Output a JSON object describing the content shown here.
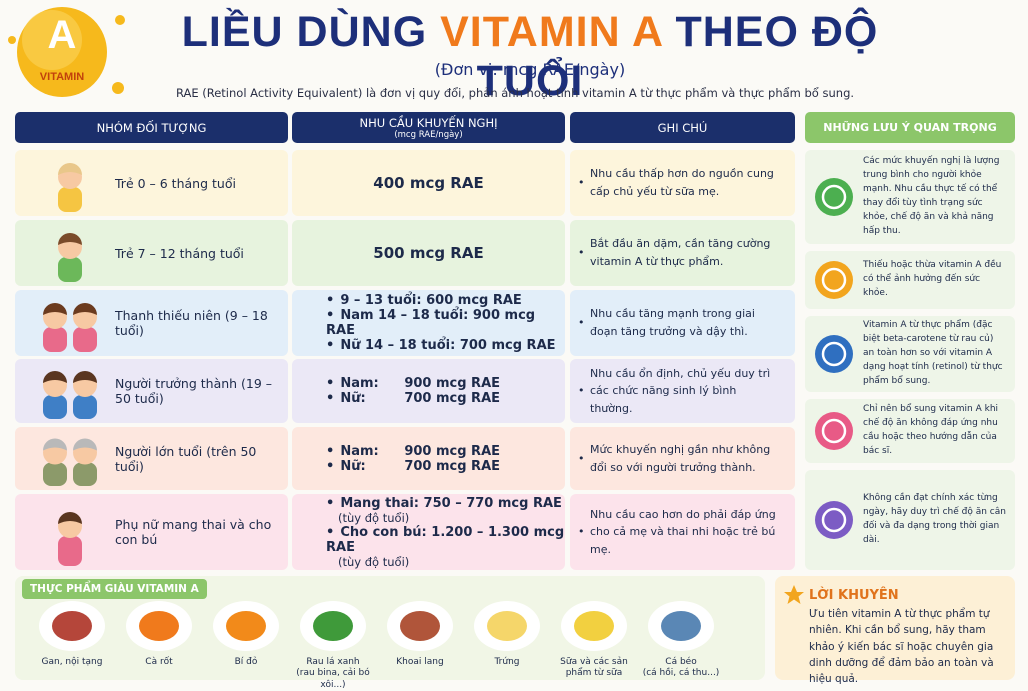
{
  "header": {
    "badge_letter": "A",
    "badge_text": "VITAMIN",
    "title_parts": [
      "LIỀU DÙNG ",
      "VITAMIN A",
      " THEO ĐỘ TUỔI"
    ],
    "unit": "(Đơn vị: mcg RAE/ngày)",
    "description": "RAE (Retinol Activity Equivalent) là đơn vị quy đổi, phản ánh hoạt tính vitamin A từ thực phẩm và thực phẩm bổ sung."
  },
  "table": {
    "columns": [
      {
        "title": "NHÓM ĐỐI TƯỢNG"
      },
      {
        "title": "NHU CẦU KHUYẾN NGHỊ",
        "sub": "(mcg RAE/ngày)"
      },
      {
        "title": "GHI CHÚ"
      }
    ],
    "rows": [
      {
        "group": "Trẻ 0 – 6 tháng tuổi",
        "needs": [
          {
            "text": "400 mcg RAE"
          }
        ],
        "note": "Nhu cầu thấp hơn do nguồn cung cấp chủ yếu từ sữa mẹ."
      },
      {
        "group": "Trẻ 7 – 12 tháng tuổi",
        "needs": [
          {
            "text": "500 mcg RAE"
          }
        ],
        "note": "Bắt đầu ăn dặm, cần tăng cường vitamin A từ thực phẩm."
      },
      {
        "group": "Thanh thiếu niên (9 – 18 tuổi)",
        "needs": [
          {
            "text": "9 – 13 tuổi: 600 mcg RAE"
          },
          {
            "text": "Nam 14 – 18 tuổi: 900 mcg RAE"
          },
          {
            "text": "Nữ 14 – 18 tuổi: 700 mcg RAE"
          }
        ],
        "note": "Nhu cầu tăng mạnh trong giai đoạn tăng trưởng và dậy thì."
      },
      {
        "group": "Người trưởng thành (19 – 50 tuổi)",
        "needs": [
          {
            "label": "Nam:",
            "text": "900 mcg RAE"
          },
          {
            "label": "Nữ:",
            "text": "700 mcg RAE"
          }
        ],
        "note": "Nhu cầu ổn định, chủ yếu duy trì các chức năng sinh lý bình thường."
      },
      {
        "group": "Người lớn tuổi (trên 50 tuổi)",
        "needs": [
          {
            "label": "Nam:",
            "text": "900 mcg RAE"
          },
          {
            "label": "Nữ:",
            "text": "700 mcg RAE"
          }
        ],
        "note": "Mức khuyến nghị gần như không đổi so với người trưởng thành."
      },
      {
        "group": "Phụ nữ mang thai và cho con bú",
        "needs": [
          {
            "text": "Mang thai: 750 – 770 mcg RAE",
            "sub": "(tùy độ tuổi)"
          },
          {
            "text": "Cho con bú: 1.200 – 1.300 mcg RAE",
            "sub": "(tùy độ tuổi)"
          }
        ],
        "note": "Nhu cầu cao hơn do phải đáp ứng cho cả mẹ và thai nhi hoặc trẻ bú mẹ."
      }
    ]
  },
  "side": {
    "title": "NHỮNG LƯU Ý QUAN TRỌNG",
    "items": [
      "Các mức khuyến nghị là lượng trung bình cho người khỏe mạnh. Nhu cầu thực tế có thể thay đổi tùy tình trạng sức khỏe, chế độ ăn và khả năng hấp thu.",
      "Thiếu hoặc thừa vitamin A đều có thể ảnh hưởng đến sức khỏe.",
      "Vitamin A từ thực phẩm (đặc biệt beta-carotene từ rau củ) an toàn hơn so với vitamin A dạng hoạt tính (retinol) từ thực phẩm bổ sung.",
      "Chỉ nên bổ sung vitamin A khi chế độ ăn không đáp ứng nhu cầu hoặc theo hướng dẫn của bác sĩ.",
      "Không cần đạt chính xác từng ngày, hãy duy trì chế độ ăn cân đối và đa dạng trong thời gian dài."
    ]
  },
  "foods": {
    "title": "THỰC PHẨM GIÀU VITAMIN A",
    "items": [
      {
        "name": "Gan, nội tạng"
      },
      {
        "name": "Cà rốt"
      },
      {
        "name": "Bí đỏ"
      },
      {
        "name": "Rau lá xanh",
        "sub": "(rau bina, cải bó xôi...)"
      },
      {
        "name": "Khoai lang"
      },
      {
        "name": "Trứng"
      },
      {
        "name": "Sữa và các sản phẩm từ sữa"
      },
      {
        "name": "Cá béo",
        "sub": "(cá hồi, cá thu...)"
      }
    ]
  },
  "advice": {
    "title": "LỜI KHUYÊN",
    "text": "Ưu tiên vitamin A từ thực phẩm tự nhiên. Khi cần bổ sung, hãy tham khảo ý kiến bác sĩ hoặc chuyên gia dinh dưỡng để đảm bảo an toàn và hiệu quả."
  }
}
